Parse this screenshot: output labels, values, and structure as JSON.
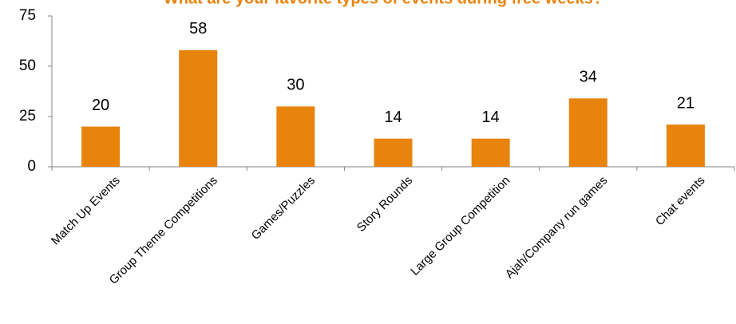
{
  "chart_data": {
    "type": "bar",
    "title": "What are your favorite types of events during free weeks?",
    "categories": [
      "Match Up Events",
      "Group Theme Competitions",
      "Games/Puzzles",
      "Story Rounds",
      "Large Group Competition",
      "Ajah/Company run games",
      "Chat events"
    ],
    "values": [
      20,
      58,
      30,
      14,
      14,
      34,
      21
    ],
    "color": "#e8830c",
    "ylim": [
      0,
      75
    ],
    "yticks": [
      0,
      25,
      50,
      75
    ],
    "grid": false
  }
}
